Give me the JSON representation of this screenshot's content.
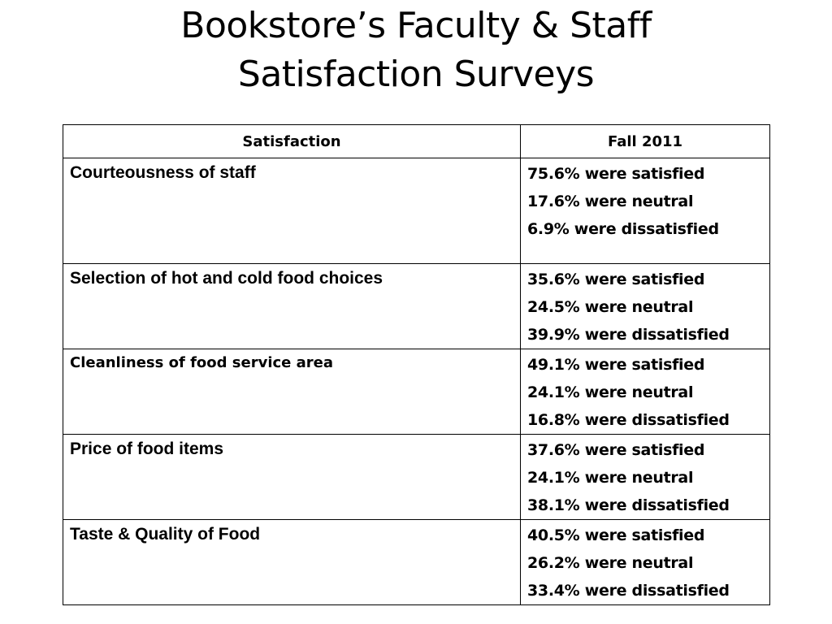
{
  "title": {
    "line1": "Bookstore’s Faculty & Staff",
    "line2": "Satisfaction Surveys"
  },
  "table": {
    "headers": [
      "Satisfaction",
      "Fall 2011"
    ],
    "rows": [
      {
        "label": "Courteousness of staff",
        "results": [
          "75.6% were satisfied",
          "17.6% were neutral",
          "6.9% were dissatisfied"
        ]
      },
      {
        "label": "Selection of hot and cold food choices",
        "results": [
          "35.6% were satisfied",
          "24.5% were neutral",
          "39.9% were dissatisfied"
        ]
      },
      {
        "label": "Cleanliness of food service area",
        "results": [
          "49.1% were satisfied",
          "24.1% were neutral",
          "16.8% were dissatisfied"
        ]
      },
      {
        "label": "Price of food items",
        "results": [
          "37.6% were satisfied",
          "24.1% were neutral",
          "38.1% were dissatisfied"
        ]
      },
      {
        "label": "Taste & Quality of Food",
        "results": [
          "40.5% were satisfied",
          "26.2% were neutral",
          "33.4% were dissatisfied"
        ]
      }
    ]
  }
}
